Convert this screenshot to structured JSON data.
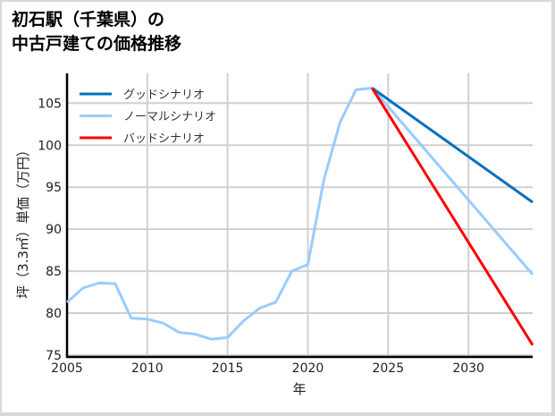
{
  "title_line1": "初石駅（千葉県）の",
  "title_line2": "中古戸建ての価格推移",
  "chart_data": {
    "type": "line",
    "title": "初石駅（千葉県）の中古戸建ての価格推移",
    "xlabel": "年",
    "ylabel": "坪（3.3㎡）単価（万円）",
    "xlim": [
      2005,
      2034
    ],
    "ylim": [
      75,
      108
    ],
    "xticks": [
      2005,
      2010,
      2015,
      2020,
      2025,
      2030
    ],
    "yticks": [
      75,
      80,
      85,
      90,
      95,
      100,
      105
    ],
    "grid": true,
    "legend_position": "upper left",
    "series": [
      {
        "name": "グッドシナリオ",
        "color": "#0070c0",
        "x": [
          2024,
          2034
        ],
        "values": [
          106.8,
          93.2
        ]
      },
      {
        "name": "ノーマルシナリオ",
        "color": "#99ccff",
        "x": [
          2005,
          2006,
          2007,
          2008,
          2009,
          2010,
          2011,
          2012,
          2013,
          2014,
          2015,
          2016,
          2017,
          2018,
          2019,
          2020,
          2021,
          2022,
          2023,
          2024,
          2034
        ],
        "values": [
          81.3,
          83.0,
          83.6,
          83.5,
          79.4,
          79.3,
          78.8,
          77.7,
          77.5,
          76.9,
          77.1,
          79.1,
          80.6,
          81.3,
          85.0,
          85.8,
          95.9,
          102.7,
          106.6,
          106.8,
          84.6
        ]
      },
      {
        "name": "バッドシナリオ",
        "color": "#ff0000",
        "x": [
          2024,
          2034
        ],
        "values": [
          106.8,
          76.2
        ]
      }
    ]
  }
}
